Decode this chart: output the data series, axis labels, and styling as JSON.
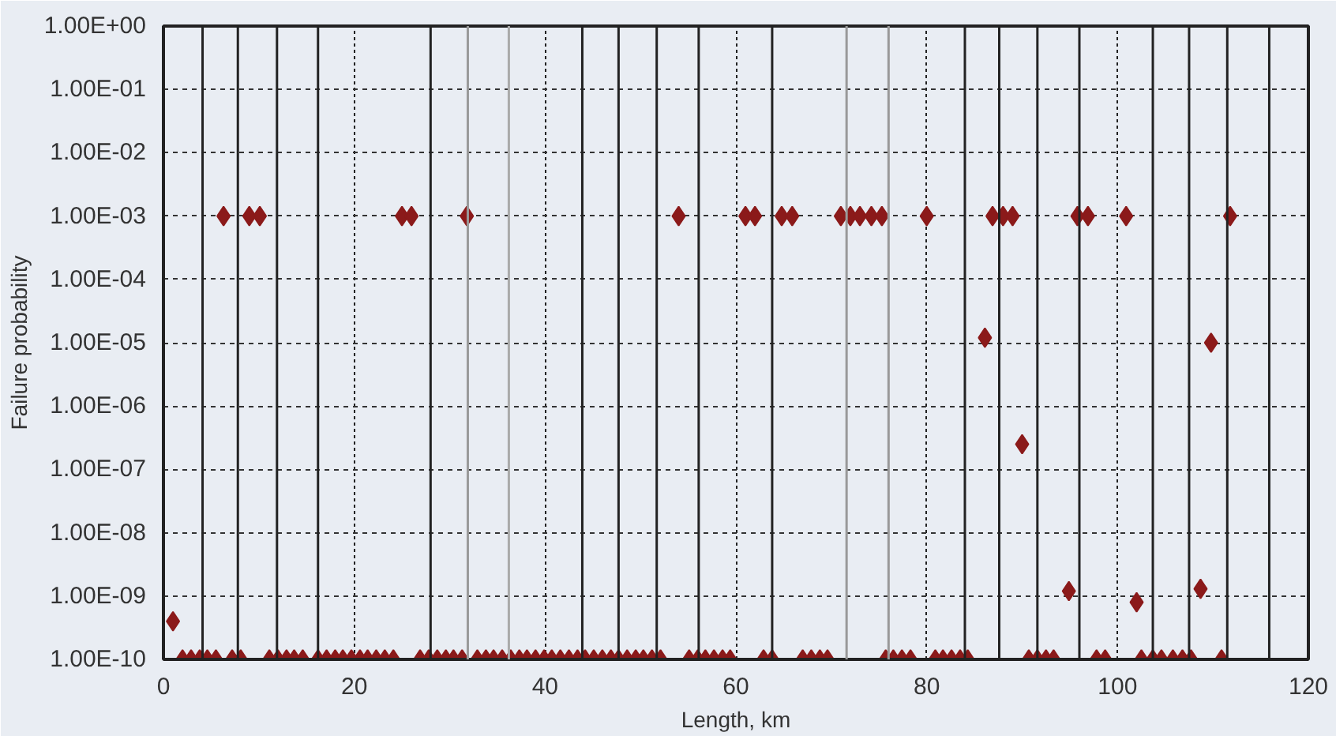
{
  "chart_data": {
    "type": "scatter",
    "xlabel": "Length, km",
    "ylabel": "Failure probability",
    "xlim": [
      0,
      120
    ],
    "xticks": [
      0,
      20,
      40,
      60,
      80,
      100,
      120
    ],
    "ylim": [
      1e-10,
      1
    ],
    "log": "y",
    "yticks": [
      {
        "value": 1,
        "label": "1.00E+00"
      },
      {
        "value": 0.1,
        "label": "1.00E-01"
      },
      {
        "value": 0.01,
        "label": "1.00E-02"
      },
      {
        "value": 0.001,
        "label": "1.00E-03"
      },
      {
        "value": 0.0001,
        "label": "1.00E-04"
      },
      {
        "value": 1e-05,
        "label": "1.00E-05"
      },
      {
        "value": 1e-06,
        "label": "1.00E-06"
      },
      {
        "value": 1e-07,
        "label": "1.00E-07"
      },
      {
        "value": 1e-08,
        "label": "1.00E-08"
      },
      {
        "value": 1e-09,
        "label": "1.00E-09"
      },
      {
        "value": 1e-10,
        "label": "1.00E-10"
      }
    ],
    "grid": true,
    "marker": "diamond",
    "series": [
      {
        "color": "#8b1a1a",
        "x": [
          6.3,
          9.0,
          10.1,
          25.0,
          26.0,
          31.8,
          54.0,
          61.0,
          62.0,
          64.8,
          65.9,
          71.0,
          72.0,
          73.0,
          74.2,
          75.3,
          80.0,
          86.9,
          88.0,
          89.0,
          95.8,
          96.9,
          100.9,
          111.8
        ],
        "values": [
          0.001,
          0.001,
          0.001,
          0.001,
          0.001,
          0.001,
          0.001,
          0.001,
          0.001,
          0.001,
          0.001,
          0.001,
          0.001,
          0.001,
          0.001,
          0.001,
          0.001,
          0.001,
          0.001,
          0.001,
          0.001,
          0.001,
          0.001,
          0.001
        ]
      },
      {
        "color": "#8b1a1a",
        "x": [
          1.0,
          86.1,
          90.0,
          94.9,
          102.0,
          108.7,
          109.8
        ],
        "values": [
          4e-10,
          1.2e-05,
          2.5e-07,
          1.2e-09,
          8e-10,
          1.3e-09,
          1e-05
        ]
      },
      {
        "color": "#8b1a1a",
        "x": [
          2.0,
          2.9,
          3.8,
          4.6,
          5.5,
          7.2,
          8.1,
          11.1,
          12.0,
          12.9,
          13.7,
          14.6,
          16.2,
          17.1,
          18.0,
          18.8,
          19.7,
          20.6,
          21.4,
          22.3,
          23.2,
          24.1,
          26.9,
          27.8,
          28.7,
          29.6,
          30.4,
          31.3,
          32.9,
          33.8,
          34.6,
          35.5,
          36.4,
          37.3,
          38.1,
          39.0,
          39.9,
          40.7,
          41.6,
          42.5,
          43.4,
          44.2,
          45.1,
          46.0,
          46.9,
          47.7,
          48.6,
          49.5,
          50.3,
          51.2,
          52.1,
          55.1,
          56.0,
          56.8,
          57.7,
          58.6,
          59.4,
          62.9,
          63.8,
          67.0,
          67.9,
          68.8,
          69.6,
          75.7,
          76.5,
          77.4,
          78.3,
          80.9,
          81.7,
          82.6,
          83.5,
          84.3,
          90.7,
          91.6,
          92.5,
          93.3,
          97.8,
          98.7,
          102.5,
          103.7,
          104.6,
          105.8,
          106.8,
          107.7,
          110.9
        ],
        "values": [
          1e-10,
          1e-10,
          1e-10,
          1e-10,
          1e-10,
          1e-10,
          1e-10,
          1e-10,
          1e-10,
          1e-10,
          1e-10,
          1e-10,
          1e-10,
          1e-10,
          1e-10,
          1e-10,
          1e-10,
          1e-10,
          1e-10,
          1e-10,
          1e-10,
          1e-10,
          1e-10,
          1e-10,
          1e-10,
          1e-10,
          1e-10,
          1e-10,
          1e-10,
          1e-10,
          1e-10,
          1e-10,
          1e-10,
          1e-10,
          1e-10,
          1e-10,
          1e-10,
          1e-10,
          1e-10,
          1e-10,
          1e-10,
          1e-10,
          1e-10,
          1e-10,
          1e-10,
          1e-10,
          1e-10,
          1e-10,
          1e-10,
          1e-10,
          1e-10,
          1e-10,
          1e-10,
          1e-10,
          1e-10,
          1e-10,
          1e-10,
          1e-10,
          1e-10,
          1e-10,
          1e-10,
          1e-10,
          1e-10,
          1e-10,
          1e-10,
          1e-10,
          1e-10,
          1e-10,
          1e-10,
          1e-10,
          1e-10,
          1e-10,
          1e-10,
          1e-10,
          1e-10,
          1e-10,
          1e-10,
          1e-10,
          1e-10,
          1e-10,
          1e-10,
          1e-10,
          1e-10,
          1e-10,
          1e-10
        ]
      }
    ],
    "ref_lines": [
      {
        "axis": "x",
        "value": 4.1,
        "color": "#222222"
      },
      {
        "axis": "x",
        "value": 7.8,
        "color": "#222222"
      },
      {
        "axis": "x",
        "value": 11.9,
        "color": "#222222"
      },
      {
        "axis": "x",
        "value": 16.2,
        "color": "#222222"
      },
      {
        "axis": "x",
        "value": 28.0,
        "color": "#222222"
      },
      {
        "axis": "x",
        "value": 31.9,
        "color": "#999999"
      },
      {
        "axis": "x",
        "value": 36.2,
        "color": "#aaaaaa"
      },
      {
        "axis": "x",
        "value": 43.9,
        "color": "#222222"
      },
      {
        "axis": "x",
        "value": 47.7,
        "color": "#222222"
      },
      {
        "axis": "x",
        "value": 51.7,
        "color": "#222222"
      },
      {
        "axis": "x",
        "value": 56.1,
        "color": "#222222"
      },
      {
        "axis": "x",
        "value": 63.8,
        "color": "#222222"
      },
      {
        "axis": "x",
        "value": 71.6,
        "color": "#999999"
      },
      {
        "axis": "x",
        "value": 76.0,
        "color": "#999999"
      },
      {
        "axis": "x",
        "value": 84.0,
        "color": "#222222"
      },
      {
        "axis": "x",
        "value": 87.6,
        "color": "#222222"
      },
      {
        "axis": "x",
        "value": 91.6,
        "color": "#222222"
      },
      {
        "axis": "x",
        "value": 96.0,
        "color": "#222222"
      },
      {
        "axis": "x",
        "value": 103.7,
        "color": "#222222"
      },
      {
        "axis": "x",
        "value": 107.5,
        "color": "#222222"
      },
      {
        "axis": "x",
        "value": 111.5,
        "color": "#222222"
      },
      {
        "axis": "x",
        "value": 115.9,
        "color": "#222222"
      }
    ]
  }
}
